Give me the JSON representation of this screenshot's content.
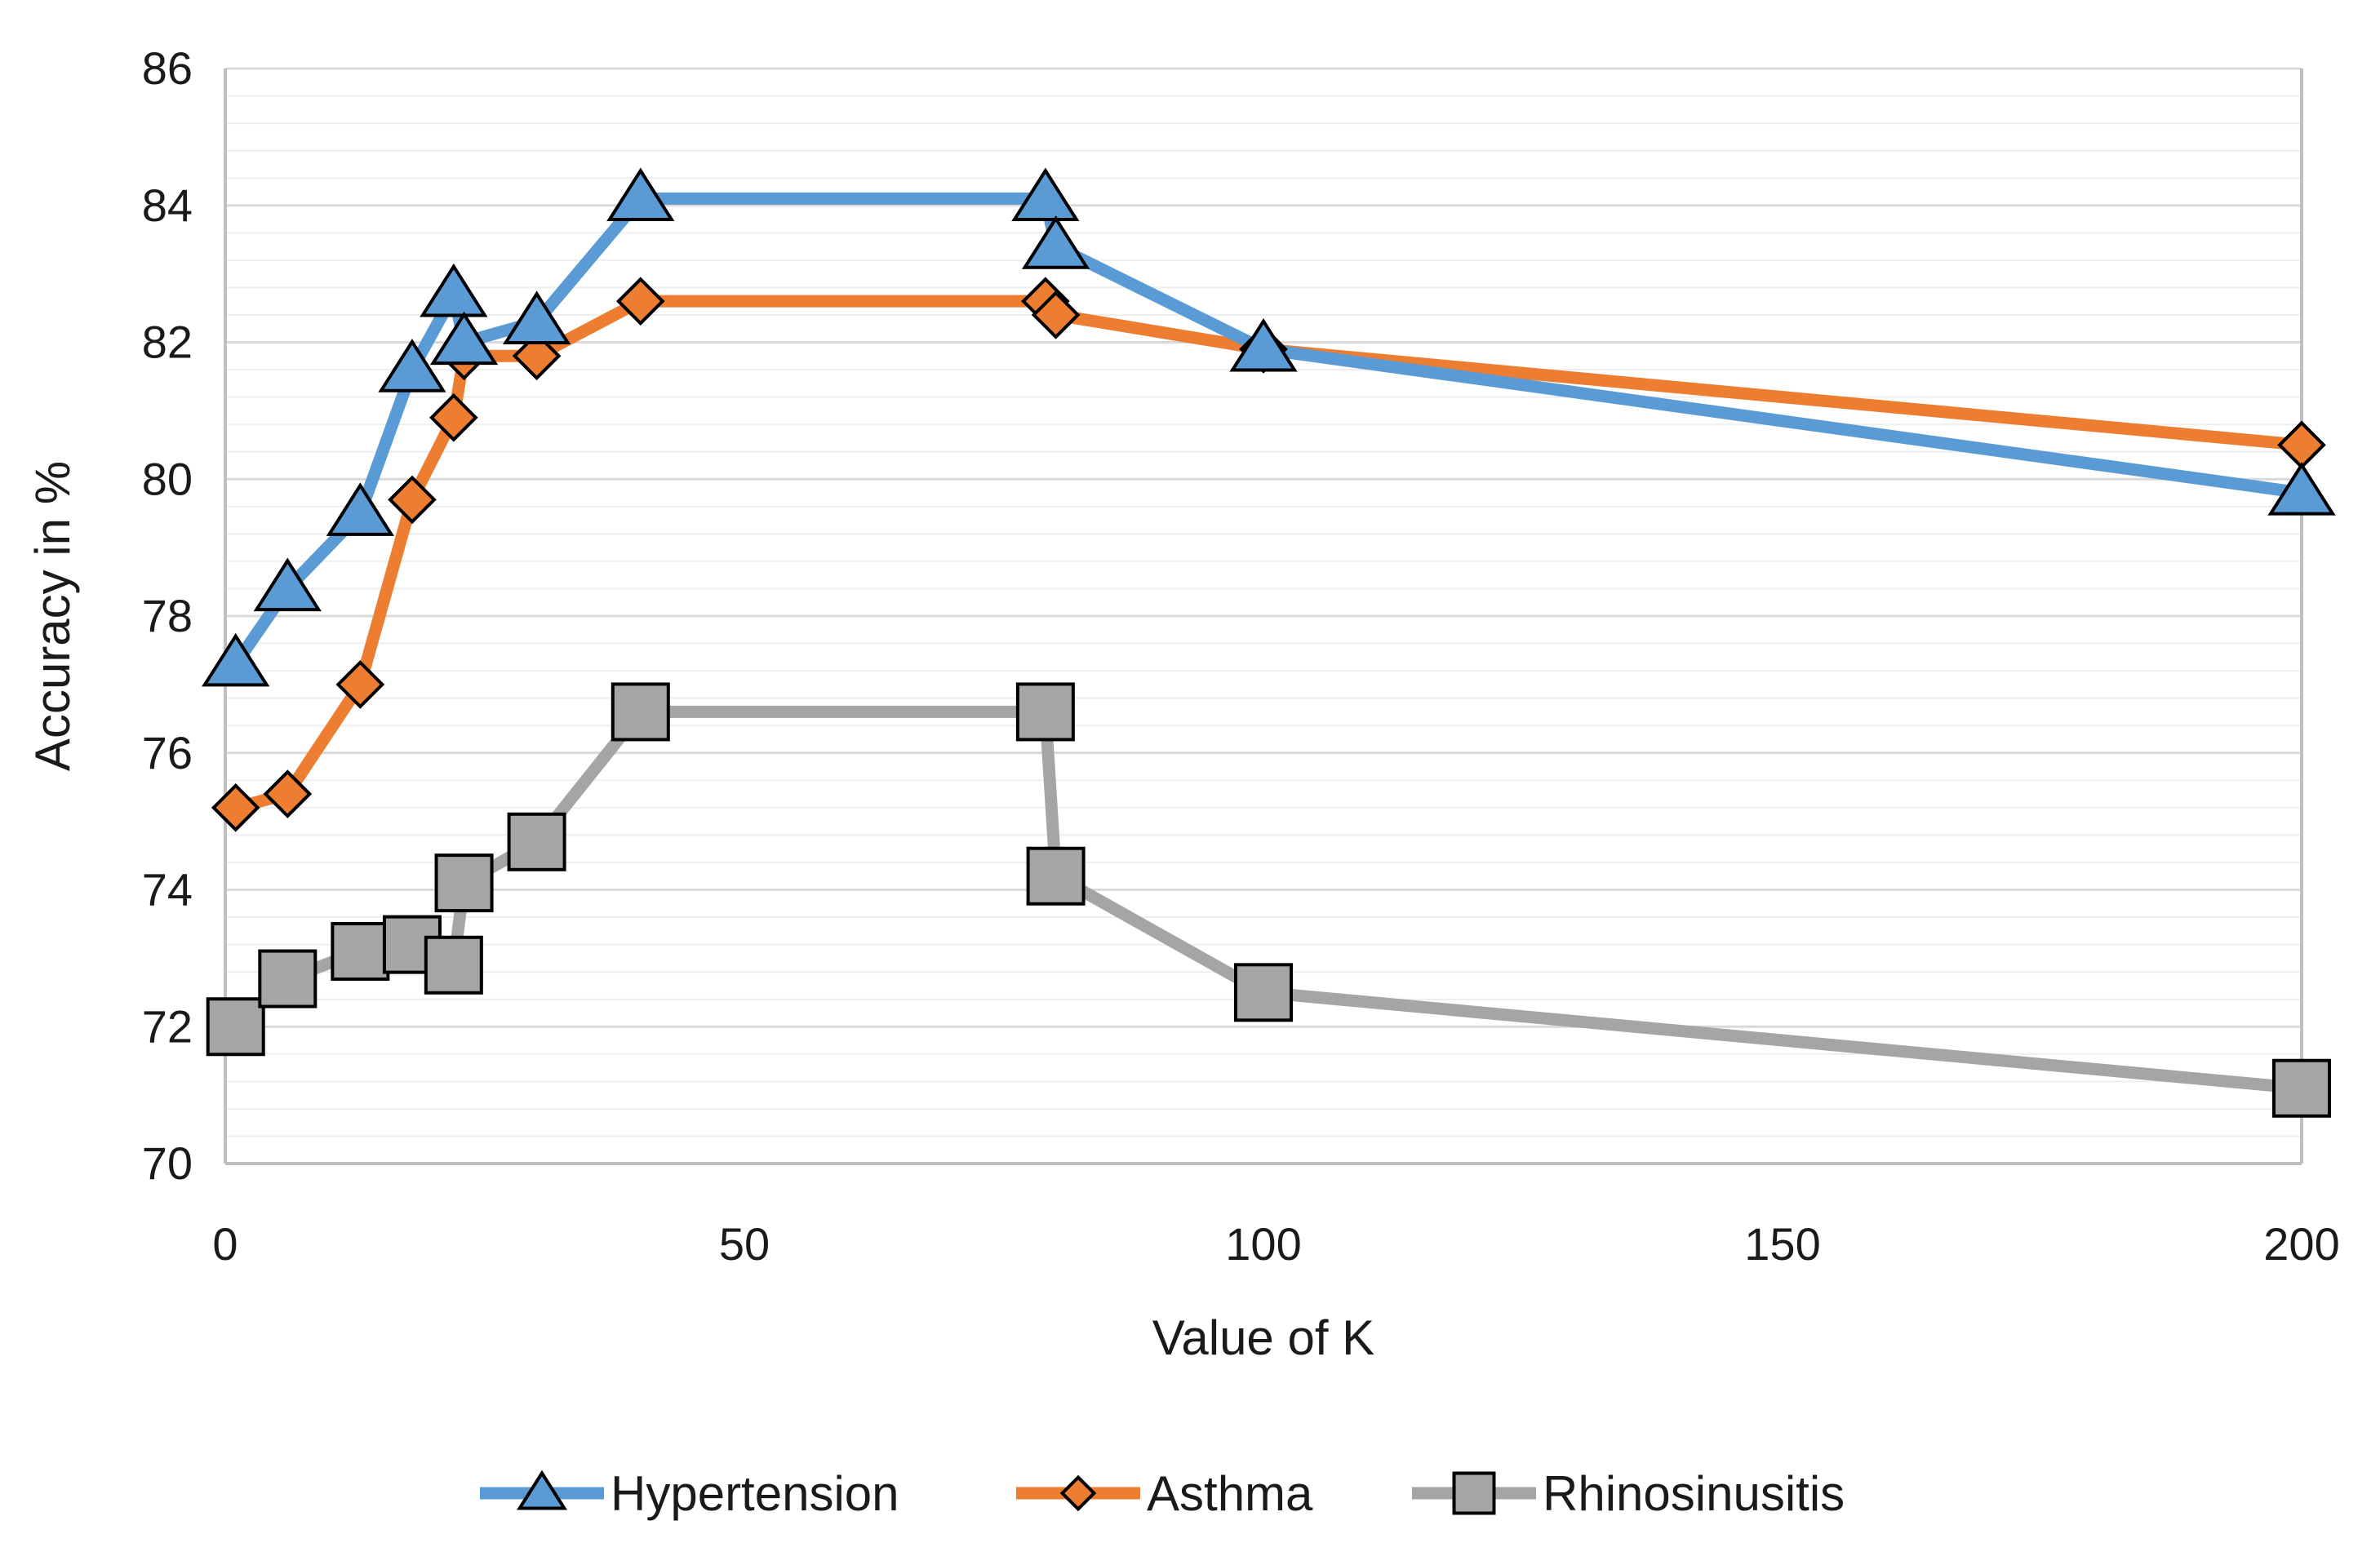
{
  "chart_data": {
    "type": "line",
    "title": "",
    "xlabel": "Value of K",
    "ylabel": "Accuracy in %",
    "x_ticks": [
      "0",
      "50",
      "100",
      "150",
      "200"
    ],
    "y_ticks": [
      "70",
      "72",
      "74",
      "76",
      "78",
      "80",
      "82",
      "84",
      "86"
    ],
    "xlim": [
      0,
      200
    ],
    "ylim": [
      70,
      86
    ],
    "grid": "horizontal",
    "legend_position": "bottom",
    "series": [
      {
        "name": "Hypertension",
        "color": "#5B9BD5",
        "marker": "triangle",
        "points": [
          [
            1,
            77.3
          ],
          [
            6,
            78.4
          ],
          [
            13,
            79.5
          ],
          [
            18,
            81.6
          ],
          [
            22,
            82.7
          ],
          [
            23,
            82.0
          ],
          [
            30,
            82.3
          ],
          [
            40,
            84.1
          ],
          [
            79,
            84.1
          ],
          [
            80,
            83.4
          ],
          [
            100,
            81.9
          ],
          [
            200,
            79.8
          ]
        ]
      },
      {
        "name": "Asthma",
        "color": "#ED7D31",
        "marker": "diamond",
        "points": [
          [
            1,
            75.2
          ],
          [
            6,
            75.4
          ],
          [
            13,
            77.0
          ],
          [
            18,
            79.7
          ],
          [
            22,
            80.9
          ],
          [
            23,
            81.8
          ],
          [
            30,
            81.8
          ],
          [
            40,
            82.6
          ],
          [
            79,
            82.6
          ],
          [
            80,
            82.4
          ],
          [
            100,
            81.9
          ],
          [
            200,
            80.5
          ]
        ]
      },
      {
        "name": "Rhinosinusitis",
        "color": "#A5A5A5",
        "marker": "square",
        "points": [
          [
            1,
            72.0
          ],
          [
            6,
            72.7
          ],
          [
            13,
            73.1
          ],
          [
            18,
            73.2
          ],
          [
            22,
            72.9
          ],
          [
            23,
            74.1
          ],
          [
            30,
            74.7
          ],
          [
            40,
            76.6
          ],
          [
            79,
            76.6
          ],
          [
            80,
            74.2
          ],
          [
            100,
            72.5
          ],
          [
            200,
            71.1
          ]
        ]
      }
    ]
  }
}
